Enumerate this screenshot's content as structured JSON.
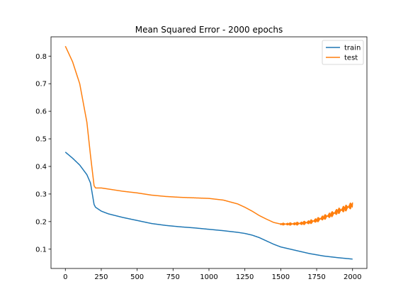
{
  "chart_data": {
    "type": "line",
    "title": "Mean Squared Error - 2000 epochs",
    "xlabel": "",
    "ylabel": "",
    "xlim": [
      -100,
      2100
    ],
    "ylim": [
      0.03,
      0.87
    ],
    "x_ticks": [
      0,
      250,
      500,
      750,
      1000,
      1250,
      1500,
      1750,
      2000
    ],
    "y_ticks": [
      0.1,
      0.2,
      0.3,
      0.4,
      0.5,
      0.6,
      0.7,
      0.8
    ],
    "grid": false,
    "legend": {
      "placement": "top-right",
      "entries": [
        "train",
        "test"
      ]
    },
    "series": [
      {
        "name": "train",
        "color": "#1f77b4",
        "x": [
          0,
          50,
          100,
          150,
          175,
          200,
          210,
          250,
          300,
          400,
          500,
          600,
          700,
          800,
          900,
          1000,
          1100,
          1200,
          1250,
          1300,
          1350,
          1400,
          1450,
          1500,
          1600,
          1700,
          1800,
          1900,
          2000
        ],
        "y": [
          0.452,
          0.43,
          0.405,
          0.37,
          0.34,
          0.262,
          0.252,
          0.238,
          0.228,
          0.215,
          0.204,
          0.193,
          0.186,
          0.181,
          0.177,
          0.172,
          0.167,
          0.161,
          0.157,
          0.151,
          0.142,
          0.13,
          0.118,
          0.108,
          0.096,
          0.084,
          0.075,
          0.069,
          0.064
        ]
      },
      {
        "name": "test",
        "color": "#ff7f0e",
        "x": [
          0,
          50,
          100,
          150,
          175,
          200,
          210,
          250,
          300,
          400,
          500,
          600,
          700,
          800,
          900,
          1000,
          1100,
          1200,
          1250,
          1300,
          1350,
          1400,
          1450,
          1500,
          1550,
          1600,
          1650,
          1700,
          1750,
          1800,
          1850,
          1900,
          1950,
          1990,
          2000
        ],
        "y": [
          0.836,
          0.78,
          0.7,
          0.56,
          0.44,
          0.33,
          0.322,
          0.322,
          0.318,
          0.31,
          0.304,
          0.296,
          0.291,
          0.288,
          0.286,
          0.284,
          0.278,
          0.264,
          0.252,
          0.238,
          0.222,
          0.209,
          0.197,
          0.191,
          0.191,
          0.192,
          0.194,
          0.198,
          0.205,
          0.215,
          0.225,
          0.238,
          0.248,
          0.258,
          0.26
        ],
        "noise_amplitude": 0.015,
        "noise_start": 1500
      }
    ]
  }
}
